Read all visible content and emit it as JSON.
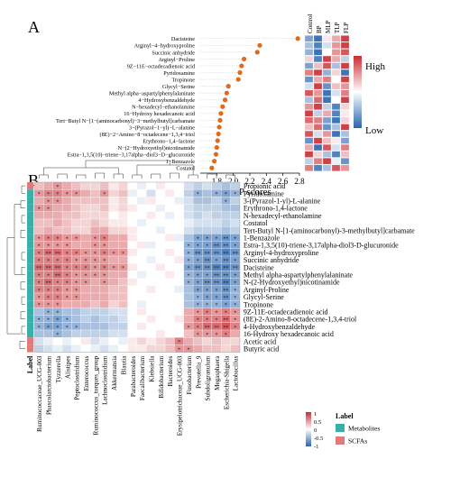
{
  "panels": {
    "a": "A",
    "b": "B"
  },
  "vip": {
    "xlabel": "VIP scores",
    "ticks": [
      1.8,
      2.0,
      2.2,
      2.4,
      2.6,
      2.8
    ],
    "xlim": [
      1.6,
      2.8
    ],
    "legend_high": "High",
    "legend_low": "Low",
    "group_labels": [
      "Control",
      "BP",
      "MLP",
      "TLP",
      "FLP"
    ]
  },
  "cluster_legend": {
    "title": "Label",
    "items": [
      {
        "label": "Metabolites",
        "color": "#3aafa9"
      },
      {
        "label": "SCFAs",
        "color": "#e07b7b"
      }
    ],
    "ticks": [
      "1",
      "0.5",
      "0",
      "-0.5",
      "-1"
    ]
  },
  "chart_data": [
    {
      "type": "scatter",
      "categories": [
        "Dacisteine",
        "Arginyl−4−hydroxyproline",
        "Succinic anhydride",
        "Arginyl−Proline",
        "9Z−11E−octadecadienoic acid",
        "Pyridoxamine",
        "Tropinone",
        "Glycyl−Serine",
        "Methyl alpha−aspartylphenylalaninate",
        "4−Hydroxybenzaldehyde",
        "N−hexadecyl−ethanolamine",
        "16−Hydroxy hexadecanoic acid",
        "Tert−Butyl N−[1−(aminocarbonyl)−3−methylbutyl]carbamate",
        "3−(Pyrazol−1−yl)−L−alanine",
        "(8E)−2−Amino−8−octadecene−1,3,4−triol",
        "Erythrono−1,4−lactone",
        "N−(2−Hydroxyethyl)nicotinamide",
        "Estra−1,3,5(10)−triene−3,17alpha−diol3−D−glucuronide",
        "1−Benzazole",
        "Costatol"
      ],
      "values": [
        2.78,
        2.32,
        2.29,
        2.13,
        2.1,
        2.08,
        2.06,
        1.94,
        1.92,
        1.9,
        1.87,
        1.85,
        1.84,
        1.83,
        1.82,
        1.81,
        1.8,
        1.79,
        1.77,
        1.74
      ],
      "xlabel": "VIP scores",
      "xlim": [
        1.6,
        2.8
      ],
      "columns": [
        "Control",
        "BP",
        "MLP",
        "TLP",
        "FLP"
      ],
      "heat": [
        [
          -0.6,
          -0.9,
          0.1,
          0.4,
          0.9
        ],
        [
          -0.4,
          -0.8,
          -0.2,
          0.5,
          0.9
        ],
        [
          -0.5,
          -0.9,
          0.0,
          0.5,
          0.8
        ],
        [
          0.2,
          -0.8,
          0.9,
          0.4,
          -0.3
        ],
        [
          -0.6,
          0.3,
          0.8,
          -0.4,
          0.9
        ],
        [
          0.6,
          0.9,
          -0.5,
          0.2,
          -0.9
        ],
        [
          -0.7,
          0.4,
          0.6,
          0.0,
          0.9
        ],
        [
          -0.2,
          0.9,
          -0.7,
          0.3,
          0.5
        ],
        [
          0.8,
          0.5,
          -0.9,
          -0.2,
          0.6
        ],
        [
          -0.4,
          0.7,
          -0.9,
          0.0,
          0.9
        ],
        [
          0.5,
          0.9,
          -0.3,
          -0.8,
          0.2
        ],
        [
          0.9,
          -0.3,
          0.4,
          -0.8,
          0.1
        ],
        [
          0.7,
          0.6,
          -0.6,
          -0.9,
          0.2
        ],
        [
          0.3,
          0.7,
          -0.7,
          -0.4,
          0.9
        ],
        [
          0.8,
          -0.2,
          0.5,
          -0.9,
          -0.4
        ],
        [
          -0.7,
          0.9,
          0.3,
          0.1,
          -0.6
        ],
        [
          0.4,
          -0.9,
          0.8,
          -0.2,
          0.6
        ],
        [
          0.9,
          0.2,
          -0.4,
          -0.8,
          0.3
        ],
        [
          -0.3,
          0.6,
          0.9,
          -0.1,
          -0.7
        ],
        [
          0.6,
          -0.8,
          -0.4,
          0.8,
          0.5
        ]
      ]
    },
    {
      "type": "heatmap",
      "rows": [
        "Propionic acid",
        "Pyridoxamine",
        "3-(Pyrazol-1-yl)-L-alanine",
        "Erythrono-1,4-lactone",
        "N-hexadecyl-ethanolamine",
        "Costatol",
        "Tert-Butyl N-[1-(aminocarbonyl)-3-methylbutyl]carbamate",
        "1-Benzazole",
        "Estra-1,3,5(10)-triene-3,17alpha-diol3-D-glucuronide",
        "Arginyl-4-hydroxyproline",
        "Succinic anhydride",
        "Dacisteine",
        "Methyl alpha-aspartylphenylalaninate",
        "N-(2-Hydroxyethyl)nicotinamide",
        "Arginyl-Proline",
        "Glycyl-Serine",
        "Tropinone",
        "9Z-11E-octadecadienoic acid",
        "(8E)-2-Amino-8-octadecene-1,3,4-triol",
        "4-Hydroxybenzaldehyde",
        "16-Hydroxy hexadecanoic acid",
        "Acetic acid",
        "Butyric acid"
      ],
      "row_types": [
        "SCFAs",
        "Metabolites",
        "Metabolites",
        "Metabolites",
        "Metabolites",
        "Metabolites",
        "Metabolites",
        "Metabolites",
        "Metabolites",
        "Metabolites",
        "Metabolites",
        "Metabolites",
        "Metabolites",
        "Metabolites",
        "Metabolites",
        "Metabolites",
        "Metabolites",
        "Metabolites",
        "Metabolites",
        "Metabolites",
        "Metabolites",
        "SCFAs",
        "SCFAs"
      ],
      "columns": [
        "Ruminococcaceae_UCG-003",
        "Phascolarctobacterium",
        "Tyzzerella",
        "Alistipes",
        "Peptoclostridium",
        "Enterococcus",
        "Ruminococcus_torques_group",
        "Lachnoclostridium",
        "Akkermansia",
        "Blautia",
        "Parabacteroides",
        "Faecalibacterium",
        "Klebsiella",
        "Bifidobacterium",
        "Bacteroides",
        "Erysipelotrichaceae_UCG-003",
        "Fusobacterium",
        "Prevotella_9",
        "Subdoligranulum",
        "Megasphaera",
        "Escherichia-Shigella",
        "Lactobacillus"
      ],
      "values": [
        [
          0.3,
          0.4,
          0.5,
          0.4,
          0.3,
          0.2,
          0.2,
          0.3,
          0.1,
          0.2,
          0.0,
          -0.1,
          0.0,
          0.1,
          0.0,
          0.0,
          -0.2,
          -0.3,
          -0.2,
          -0.3,
          -0.4,
          -0.3
        ],
        [
          0.5,
          0.6,
          0.6,
          0.5,
          0.5,
          0.4,
          0.3,
          0.5,
          0.2,
          0.3,
          -0.1,
          0.0,
          -0.2,
          0.0,
          0.1,
          0.0,
          -0.3,
          -0.5,
          -0.4,
          -0.5,
          -0.6,
          -0.5
        ],
        [
          0.4,
          0.5,
          0.5,
          0.4,
          0.3,
          0.3,
          0.3,
          0.3,
          0.1,
          0.2,
          0.0,
          -0.1,
          0.1,
          0.0,
          0.0,
          -0.1,
          -0.2,
          -0.4,
          -0.4,
          -0.3,
          -0.5,
          -0.3
        ],
        [
          0.5,
          0.5,
          0.4,
          0.4,
          0.3,
          0.2,
          0.2,
          0.3,
          0.1,
          0.2,
          0.1,
          0.0,
          0.0,
          -0.1,
          0.0,
          0.0,
          -0.2,
          -0.3,
          -0.3,
          -0.3,
          -0.4,
          -0.4
        ],
        [
          0.4,
          0.4,
          0.4,
          0.3,
          0.3,
          0.2,
          0.2,
          0.2,
          0.0,
          0.1,
          0.0,
          0.0,
          0.1,
          0.0,
          -0.1,
          0.0,
          -0.2,
          -0.3,
          -0.2,
          -0.3,
          -0.3,
          -0.3
        ],
        [
          0.3,
          0.3,
          0.4,
          0.3,
          0.2,
          0.2,
          0.3,
          0.2,
          0.1,
          0.1,
          0.0,
          -0.1,
          0.0,
          0.0,
          0.0,
          0.0,
          -0.1,
          -0.2,
          -0.2,
          -0.2,
          -0.3,
          -0.2
        ],
        [
          0.3,
          0.4,
          0.3,
          0.3,
          0.2,
          0.2,
          0.4,
          0.4,
          0.2,
          0.2,
          0.1,
          0.0,
          0.0,
          -0.1,
          0.0,
          0.0,
          -0.2,
          -0.3,
          -0.3,
          -0.3,
          -0.4,
          -0.3
        ],
        [
          0.5,
          0.6,
          0.6,
          0.5,
          0.5,
          0.4,
          0.5,
          0.6,
          0.4,
          0.4,
          0.1,
          0.0,
          0.0,
          0.0,
          0.1,
          -0.1,
          -0.4,
          -0.6,
          -0.6,
          -0.6,
          -0.7,
          -0.6
        ],
        [
          0.5,
          0.5,
          0.5,
          0.5,
          0.4,
          0.4,
          0.5,
          0.5,
          0.4,
          0.4,
          0.0,
          0.1,
          -0.1,
          0.0,
          0.0,
          0.0,
          -0.5,
          -0.6,
          -0.6,
          -0.7,
          -0.7,
          -0.6
        ],
        [
          0.6,
          0.7,
          0.7,
          0.6,
          0.6,
          0.5,
          0.5,
          0.6,
          0.5,
          0.5,
          0.1,
          0.0,
          0.0,
          0.0,
          0.1,
          0.0,
          -0.5,
          -0.7,
          -0.7,
          -0.7,
          -0.8,
          -0.7
        ],
        [
          0.6,
          0.6,
          0.6,
          0.6,
          0.5,
          0.5,
          0.5,
          0.5,
          0.4,
          0.4,
          0.0,
          0.0,
          -0.1,
          0.0,
          0.0,
          0.1,
          -0.5,
          -0.6,
          -0.7,
          -0.6,
          -0.7,
          -0.6
        ],
        [
          0.7,
          0.7,
          0.7,
          0.6,
          0.6,
          0.6,
          0.5,
          0.6,
          0.5,
          0.5,
          0.1,
          0.0,
          0.0,
          0.1,
          0.0,
          0.0,
          -0.6,
          -0.7,
          -0.7,
          -0.8,
          -0.8,
          -0.7
        ],
        [
          0.6,
          0.6,
          0.7,
          0.6,
          0.5,
          0.5,
          0.5,
          0.5,
          0.4,
          0.4,
          0.0,
          -0.1,
          0.0,
          0.0,
          0.1,
          0.0,
          -0.5,
          -0.6,
          -0.6,
          -0.7,
          -0.7,
          -0.6
        ],
        [
          0.6,
          0.7,
          0.6,
          0.6,
          0.5,
          0.5,
          0.4,
          0.5,
          0.4,
          0.3,
          0.1,
          0.0,
          0.0,
          0.0,
          0.0,
          0.0,
          -0.5,
          -0.6,
          -0.7,
          -0.7,
          -0.8,
          -0.6
        ],
        [
          0.6,
          0.6,
          0.6,
          0.5,
          0.5,
          0.4,
          0.4,
          0.4,
          0.3,
          0.3,
          0.0,
          0.0,
          0.1,
          0.0,
          0.0,
          -0.1,
          -0.4,
          -0.6,
          -0.6,
          -0.6,
          -0.7,
          -0.5
        ],
        [
          0.5,
          0.6,
          0.6,
          0.5,
          0.5,
          0.4,
          0.4,
          0.4,
          0.3,
          0.3,
          0.0,
          0.0,
          0.0,
          0.0,
          0.0,
          0.0,
          -0.4,
          -0.5,
          -0.6,
          -0.6,
          -0.7,
          -0.5
        ],
        [
          0.5,
          0.5,
          0.5,
          0.4,
          0.4,
          0.4,
          0.3,
          0.4,
          0.2,
          0.3,
          0.0,
          -0.1,
          0.0,
          0.0,
          0.0,
          0.0,
          -0.4,
          -0.5,
          -0.5,
          -0.5,
          -0.6,
          -0.5
        ],
        [
          -0.4,
          -0.5,
          -0.5,
          -0.4,
          -0.4,
          -0.3,
          -0.3,
          -0.3,
          -0.2,
          -0.2,
          0.0,
          0.1,
          0.0,
          0.0,
          0.0,
          0.0,
          0.4,
          0.5,
          0.6,
          0.5,
          0.6,
          0.5
        ],
        [
          -0.5,
          -0.5,
          -0.6,
          -0.5,
          -0.4,
          -0.3,
          -0.4,
          -0.3,
          -0.3,
          -0.2,
          0.0,
          0.0,
          0.1,
          0.0,
          0.0,
          0.1,
          0.4,
          0.6,
          0.6,
          0.6,
          0.7,
          0.5
        ],
        [
          -0.5,
          -0.6,
          -0.6,
          -0.5,
          -0.5,
          -0.4,
          -0.4,
          -0.4,
          -0.3,
          -0.3,
          0.0,
          0.1,
          0.0,
          0.0,
          0.0,
          0.0,
          0.5,
          0.6,
          0.7,
          0.7,
          0.8,
          0.6
        ],
        [
          -0.4,
          -0.4,
          -0.5,
          -0.4,
          -0.3,
          -0.3,
          -0.3,
          -0.3,
          -0.2,
          -0.2,
          0.0,
          0.0,
          0.0,
          0.1,
          0.0,
          0.0,
          0.3,
          0.5,
          0.5,
          0.5,
          0.6,
          0.4
        ],
        [
          -0.2,
          -0.1,
          0.0,
          -0.1,
          0.0,
          0.1,
          -0.2,
          -0.1,
          0.0,
          -0.1,
          0.1,
          0.2,
          0.1,
          0.2,
          0.3,
          0.6,
          0.4,
          0.3,
          0.2,
          0.3,
          0.2,
          0.2
        ],
        [
          -0.3,
          -0.2,
          -0.1,
          -0.2,
          -0.1,
          0.0,
          -0.1,
          -0.2,
          -0.1,
          0.0,
          0.1,
          0.1,
          0.2,
          0.2,
          0.3,
          0.5,
          0.5,
          0.4,
          0.3,
          0.3,
          0.2,
          0.3
        ]
      ],
      "legend_title": "Label",
      "legend_items": [
        "Metabolites",
        "SCFAs"
      ]
    }
  ]
}
